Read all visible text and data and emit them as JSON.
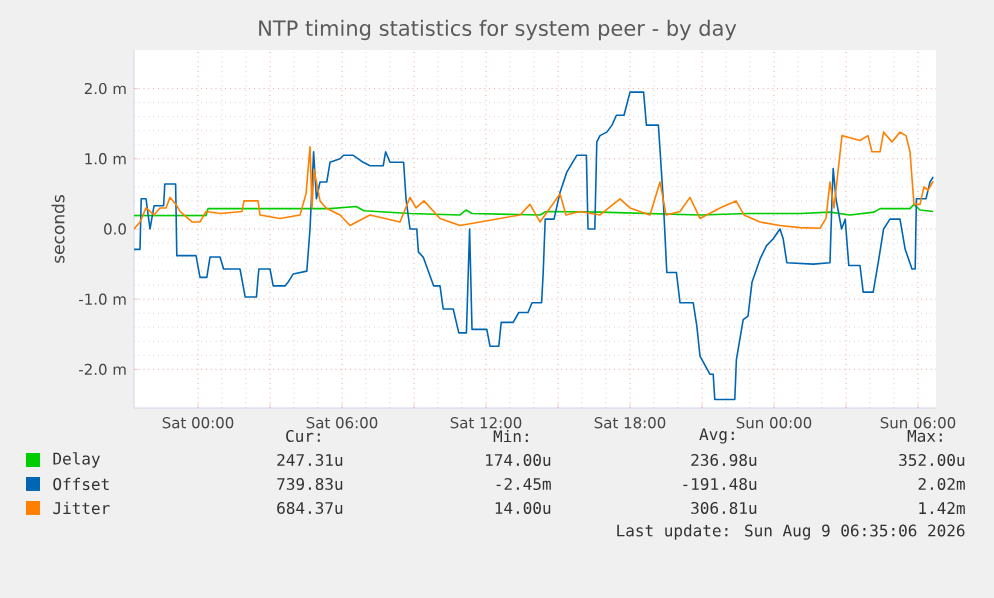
{
  "chart_data": {
    "type": "line",
    "title": "NTP timing statistics for system peer - by day",
    "ylabel": "seconds",
    "xlim": [
      "2026-08-07T21:20",
      "2026-08-09T06:45"
    ],
    "ylim": [
      -2.55,
      2.55
    ],
    "xticks": [
      {
        "value": "2026-08-08T00:00",
        "label": "Sat 00:00"
      },
      {
        "value": "2026-08-08T03:00",
        "label": null
      },
      {
        "value": "2026-08-08T06:00",
        "label": "Sat 06:00"
      },
      {
        "value": "2026-08-08T09:00",
        "label": null
      },
      {
        "value": "2026-08-08T12:00",
        "label": "Sat 12:00"
      },
      {
        "value": "2026-08-08T15:00",
        "label": null
      },
      {
        "value": "2026-08-08T18:00",
        "label": "Sat 18:00"
      },
      {
        "value": "2026-08-08T21:00",
        "label": null
      },
      {
        "value": "2026-08-09T00:00",
        "label": "Sun 00:00"
      },
      {
        "value": "2026-08-09T03:00",
        "label": null
      },
      {
        "value": "2026-08-09T06:00",
        "label": "Sun 06:00"
      }
    ],
    "yticks": [
      {
        "value": -2,
        "label": "-2.0 m"
      },
      {
        "value": -1,
        "label": "-1.0 m"
      },
      {
        "value": 0,
        "label": "0.0"
      },
      {
        "value": 1,
        "label": "1.0 m"
      },
      {
        "value": 2,
        "label": "2.0 m"
      }
    ],
    "grid": true,
    "legend": "bottom",
    "series": [
      {
        "name": "Delay",
        "color": "#00cc00",
        "x": [
          "2026-08-07T21:20",
          "2026-08-08T00:20",
          "2026-08-08T00:25",
          "2026-08-08T05:30",
          "2026-08-08T06:35",
          "2026-08-08T06:55",
          "2026-08-08T08:50",
          "2026-08-08T10:55",
          "2026-08-08T11:10",
          "2026-08-08T11:25",
          "2026-08-08T14:15",
          "2026-08-08T14:30",
          "2026-08-08T16:45",
          "2026-08-08T20:55",
          "2026-08-08T22:55",
          "2026-08-09T01:05",
          "2026-08-09T02:20",
          "2026-08-09T03:10",
          "2026-08-09T04:10",
          "2026-08-09T04:25",
          "2026-08-09T05:40",
          "2026-08-09T05:50",
          "2026-08-09T06:05",
          "2026-08-09T06:38"
        ],
        "values": [
          0.19,
          0.19,
          0.29,
          0.29,
          0.32,
          0.26,
          0.22,
          0.2,
          0.27,
          0.22,
          0.2,
          0.25,
          0.24,
          0.2,
          0.22,
          0.22,
          0.24,
          0.2,
          0.24,
          0.29,
          0.29,
          0.35,
          0.27,
          0.25
        ]
      },
      {
        "name": "Offset",
        "color": "#0066b3",
        "x": [
          "2026-08-07T21:20",
          "2026-08-07T21:35",
          "2026-08-07T21:38",
          "2026-08-07T21:50",
          "2026-08-07T22:00",
          "2026-08-07T22:10",
          "2026-08-07T22:34",
          "2026-08-07T22:37",
          "2026-08-07T23:04",
          "2026-08-07T23:07",
          "2026-08-07T23:55",
          "2026-08-08T00:05",
          "2026-08-08T00:22",
          "2026-08-08T00:30",
          "2026-08-08T00:55",
          "2026-08-08T01:04",
          "2026-08-08T01:45",
          "2026-08-08T01:58",
          "2026-08-08T02:26",
          "2026-08-08T02:32",
          "2026-08-08T03:00",
          "2026-08-08T03:08",
          "2026-08-08T03:38",
          "2026-08-08T03:45",
          "2026-08-08T03:58",
          "2026-08-08T04:32",
          "2026-08-08T04:40",
          "2026-08-08T04:49",
          "2026-08-08T04:56",
          "2026-08-08T05:05",
          "2026-08-08T05:22",
          "2026-08-08T05:30",
          "2026-08-08T05:55",
          "2026-08-08T06:04",
          "2026-08-08T06:28",
          "2026-08-08T06:53",
          "2026-08-08T07:10",
          "2026-08-08T07:43",
          "2026-08-08T07:49",
          "2026-08-08T08:00",
          "2026-08-08T08:34",
          "2026-08-08T08:40",
          "2026-08-08T08:50",
          "2026-08-08T09:07",
          "2026-08-08T09:11",
          "2026-08-08T09:23",
          "2026-08-08T09:49",
          "2026-08-08T10:05",
          "2026-08-08T10:13",
          "2026-08-08T10:38",
          "2026-08-08T10:52",
          "2026-08-08T11:11",
          "2026-08-08T11:19",
          "2026-08-08T11:25",
          "2026-08-08T12:02",
          "2026-08-08T12:10",
          "2026-08-08T12:32",
          "2026-08-08T12:38",
          "2026-08-08T13:08",
          "2026-08-08T13:22",
          "2026-08-08T13:45",
          "2026-08-08T13:55",
          "2026-08-08T14:19",
          "2026-08-08T14:23",
          "2026-08-08T14:28",
          "2026-08-08T14:50",
          "2026-08-08T15:05",
          "2026-08-08T15:22",
          "2026-08-08T15:47",
          "2026-08-08T16:11",
          "2026-08-08T16:15",
          "2026-08-08T16:32",
          "2026-08-08T16:37",
          "2026-08-08T16:45",
          "2026-08-08T17:02",
          "2026-08-08T17:15",
          "2026-08-08T17:26",
          "2026-08-08T17:45",
          "2026-08-08T18:00",
          "2026-08-08T18:34",
          "2026-08-08T18:41",
          "2026-08-08T19:11",
          "2026-08-08T19:23",
          "2026-08-08T19:32",
          "2026-08-08T19:56",
          "2026-08-08T20:05",
          "2026-08-08T20:38",
          "2026-08-08T20:47",
          "2026-08-08T20:55",
          "2026-08-08T21:20",
          "2026-08-08T21:28",
          "2026-08-08T21:32",
          "2026-08-08T22:22",
          "2026-08-08T22:26",
          "2026-08-08T22:43",
          "2026-08-08T22:55",
          "2026-08-08T23:05",
          "2026-08-08T23:25",
          "2026-08-08T23:41",
          "2026-08-08T23:58",
          "2026-08-09T00:15",
          "2026-08-09T00:23",
          "2026-08-09T00:32",
          "2026-08-09T01:38",
          "2026-08-09T02:20",
          "2026-08-09T02:25",
          "2026-08-09T02:28",
          "2026-08-09T02:35",
          "2026-08-09T02:49",
          "2026-08-09T02:58",
          "2026-08-09T03:07",
          "2026-08-09T03:35",
          "2026-08-09T03:43",
          "2026-08-09T04:08",
          "2026-08-09T04:22",
          "2026-08-09T04:34",
          "2026-08-09T04:50",
          "2026-08-09T05:15",
          "2026-08-09T05:28",
          "2026-08-09T05:45",
          "2026-08-09T05:53",
          "2026-08-09T05:56",
          "2026-08-09T06:20",
          "2026-08-09T06:30",
          "2026-08-09T06:38"
        ],
        "values": [
          -0.29,
          -0.29,
          0.43,
          0.43,
          0.0,
          0.33,
          0.33,
          0.64,
          0.64,
          -0.38,
          -0.38,
          -0.69,
          -0.69,
          -0.4,
          -0.4,
          -0.57,
          -0.57,
          -0.97,
          -0.97,
          -0.57,
          -0.57,
          -0.81,
          -0.81,
          -0.76,
          -0.64,
          -0.6,
          0.0,
          1.1,
          0.43,
          0.67,
          0.67,
          0.95,
          1.0,
          1.05,
          1.05,
          0.95,
          0.9,
          0.9,
          1.1,
          0.95,
          0.95,
          0.43,
          0.0,
          0.0,
          -0.33,
          -0.4,
          -0.81,
          -0.81,
          -1.14,
          -1.14,
          -1.48,
          -1.48,
          0.0,
          -1.43,
          -1.43,
          -1.67,
          -1.67,
          -1.33,
          -1.33,
          -1.19,
          -1.19,
          -1.05,
          -1.05,
          -0.62,
          0.14,
          0.14,
          0.52,
          0.81,
          1.05,
          1.05,
          0.0,
          0.0,
          1.24,
          1.33,
          1.38,
          1.48,
          1.62,
          1.62,
          1.95,
          1.95,
          1.48,
          1.48,
          0.43,
          -0.62,
          -0.62,
          -1.05,
          -1.05,
          -1.38,
          -1.81,
          -2.07,
          -2.07,
          -2.43,
          -2.43,
          -1.86,
          -1.29,
          -1.24,
          -0.76,
          -0.43,
          -0.24,
          -0.14,
          0.0,
          -0.14,
          -0.48,
          -0.5,
          -0.48,
          0.43,
          0.86,
          0.43,
          0.0,
          0.14,
          -0.52,
          -0.52,
          -0.9,
          -0.9,
          -0.43,
          0.0,
          0.14,
          0.14,
          -0.29,
          -0.57,
          -0.57,
          0.43,
          0.43,
          0.67,
          0.74
        ]
      },
      {
        "name": "Jitter",
        "color": "#ff8000",
        "x": [
          "2026-08-07T21:20",
          "2026-08-07T21:35",
          "2026-08-07T21:50",
          "2026-08-07T22:10",
          "2026-08-07T22:25",
          "2026-08-07T22:40",
          "2026-08-07T22:50",
          "2026-08-07T23:05",
          "2026-08-07T23:15",
          "2026-08-07T23:25",
          "2026-08-07T23:45",
          "2026-08-08T00:05",
          "2026-08-08T00:20",
          "2026-08-08T00:55",
          "2026-08-08T01:50",
          "2026-08-08T01:55",
          "2026-08-08T02:30",
          "2026-08-08T02:35",
          "2026-08-08T03:25",
          "2026-08-08T04:15",
          "2026-08-08T04:30",
          "2026-08-08T04:40",
          "2026-08-08T04:45",
          "2026-08-08T04:50",
          "2026-08-08T05:05",
          "2026-08-08T05:20",
          "2026-08-08T05:55",
          "2026-08-08T06:20",
          "2026-08-08T07:10",
          "2026-08-08T08:25",
          "2026-08-08T08:50",
          "2026-08-08T09:05",
          "2026-08-08T09:25",
          "2026-08-08T10:05",
          "2026-08-08T10:55",
          "2026-08-08T11:45",
          "2026-08-08T13:25",
          "2026-08-08T13:50",
          "2026-08-08T14:15",
          "2026-08-08T14:40",
          "2026-08-08T15:05",
          "2026-08-08T15:20",
          "2026-08-08T15:55",
          "2026-08-08T16:45",
          "2026-08-08T17:35",
          "2026-08-08T18:00",
          "2026-08-08T18:50",
          "2026-08-08T19:15",
          "2026-08-08T19:30",
          "2026-08-08T20:05",
          "2026-08-08T20:30",
          "2026-08-08T20:55",
          "2026-08-08T21:45",
          "2026-08-08T22:25",
          "2026-08-08T22:45",
          "2026-08-08T23:25",
          "2026-08-09T00:15",
          "2026-08-09T01:05",
          "2026-08-09T01:55",
          "2026-08-09T02:10",
          "2026-08-09T02:20",
          "2026-08-09T02:30",
          "2026-08-09T02:50",
          "2026-08-09T03:10",
          "2026-08-09T03:35",
          "2026-08-09T03:55",
          "2026-08-09T04:05",
          "2026-08-09T04:25",
          "2026-08-09T04:34",
          "2026-08-09T04:55",
          "2026-08-09T05:15",
          "2026-08-09T05:30",
          "2026-08-09T05:40",
          "2026-08-09T05:50",
          "2026-08-09T06:05",
          "2026-08-09T06:15",
          "2026-08-09T06:25",
          "2026-08-09T06:38"
        ],
        "values": [
          0.0,
          0.1,
          0.3,
          0.2,
          0.3,
          0.3,
          0.45,
          0.35,
          0.25,
          0.2,
          0.1,
          0.1,
          0.25,
          0.22,
          0.25,
          0.4,
          0.4,
          0.2,
          0.15,
          0.2,
          0.5,
          1.17,
          0.3,
          0.85,
          0.4,
          0.3,
          0.2,
          0.05,
          0.2,
          0.1,
          0.45,
          0.3,
          0.4,
          0.15,
          0.05,
          0.1,
          0.2,
          0.35,
          0.1,
          0.3,
          0.5,
          0.2,
          0.25,
          0.2,
          0.43,
          0.3,
          0.2,
          0.67,
          0.2,
          0.25,
          0.45,
          0.15,
          0.3,
          0.4,
          0.2,
          0.1,
          0.05,
          0.02,
          0.01,
          0.15,
          0.67,
          0.3,
          1.33,
          1.3,
          1.26,
          1.33,
          1.1,
          1.1,
          1.38,
          1.24,
          1.38,
          1.33,
          1.1,
          0.35,
          0.35,
          0.6,
          0.55,
          0.68
        ]
      }
    ],
    "annotations": [
      "Cur:",
      "Min:",
      "Avg:",
      "Max:",
      "247.31u",
      "174.00u",
      "236.98u",
      "352.00u",
      "739.83u",
      "-2.45m",
      "-191.48u",
      "2.02m",
      "684.37u",
      "14.00u",
      "306.81u",
      "1.42m",
      "Last update: Sun Aug  9 06:35:06 2026"
    ]
  }
}
